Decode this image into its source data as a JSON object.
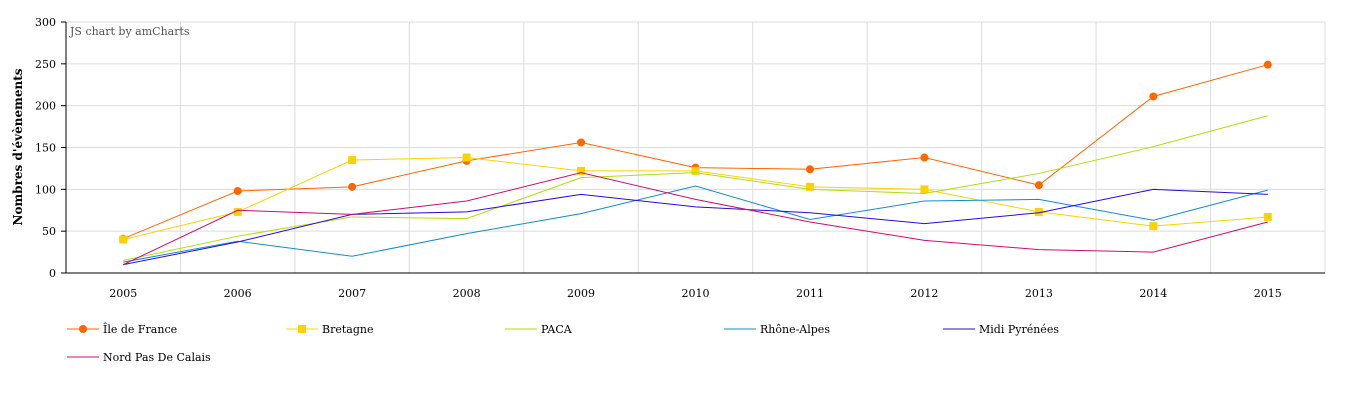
{
  "credit": "JS chart by amCharts",
  "chart_data": {
    "type": "line",
    "title": "",
    "xlabel": "",
    "ylabel": "Nombres d'évènements",
    "categories": [
      "2005",
      "2006",
      "2007",
      "2008",
      "2009",
      "2010",
      "2011",
      "2012",
      "2013",
      "2014",
      "2015"
    ],
    "ylim": [
      0,
      300
    ],
    "yticks": [
      0,
      50,
      100,
      150,
      200,
      250,
      300
    ],
    "grid": true,
    "legend_position": "bottom",
    "series": [
      {
        "name": "Île de France",
        "color": "#ff6600",
        "marker": "circle",
        "values": [
          41,
          98,
          103,
          134,
          156,
          126,
          124,
          138,
          105,
          211,
          249
        ]
      },
      {
        "name": "Bretagne",
        "color": "#fcd202",
        "marker": "square",
        "values": [
          40,
          73,
          135,
          138,
          122,
          122,
          103,
          100,
          73,
          56,
          67
        ]
      },
      {
        "name": "PACA",
        "color": "#b0de09",
        "marker": "none",
        "values": [
          15,
          44,
          67,
          65,
          114,
          120,
          100,
          95,
          119,
          151,
          188
        ]
      },
      {
        "name": "Rhône-Alpes",
        "color": "#0d8ecf",
        "marker": "none",
        "values": [
          13,
          38,
          20,
          47,
          71,
          104,
          64,
          86,
          88,
          63,
          99
        ]
      },
      {
        "name": "Midi Pyrénées",
        "color": "#2a0cd0",
        "marker": "none",
        "values": [
          10,
          37,
          70,
          73,
          94,
          79,
          72,
          59,
          72,
          100,
          94
        ]
      },
      {
        "name": "Nord Pas De Calais",
        "color": "#cd0d74",
        "marker": "none",
        "values": [
          10,
          75,
          70,
          86,
          120,
          88,
          61,
          39,
          28,
          25,
          61
        ]
      }
    ]
  }
}
